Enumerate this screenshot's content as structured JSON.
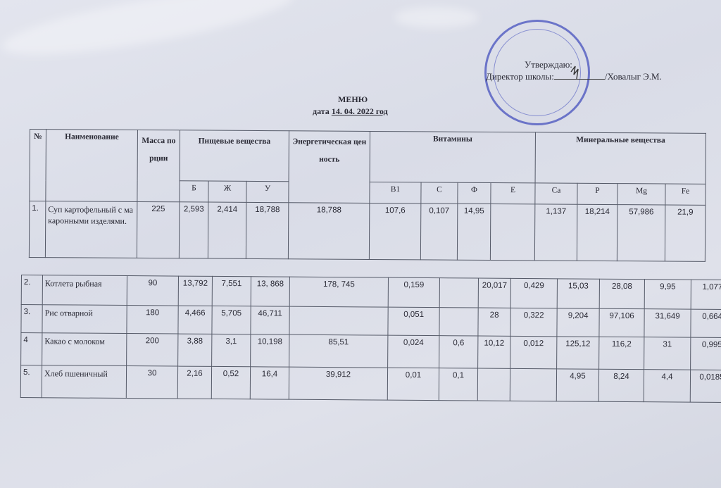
{
  "approval": {
    "approve_label": "Утверждаю:",
    "director_label": "Директор школы:",
    "director_name": "/Ховалыг Э.М."
  },
  "title": "МЕНЮ",
  "date_prefix": "дата",
  "date_value": "14. 04. 2022 год",
  "colors": {
    "stamp": "#4650be",
    "background": "#dcdfe8",
    "border": "#555a68"
  },
  "headers": {
    "num": "№",
    "name": "Наименование",
    "mass": "Масса порции",
    "nutrients": "Пищевые вещества",
    "energy": "Энергетическая ценность",
    "vitamins": "Витамины",
    "minerals": "Минеральные вещества",
    "sub": [
      "Б",
      "Ж",
      "У",
      "B1",
      "C",
      "Ф",
      "E",
      "Ca",
      "P",
      "Mg",
      "Fe"
    ]
  },
  "rows": [
    {
      "num": "1.",
      "name": "Суп картофельный с макаронными изделями.",
      "mass": "225",
      "b": "2,593",
      "zh": "2,414",
      "u": "18,788",
      "energy": "18,788",
      "b1": "107,6",
      "c": "0,107",
      "f": "14,95",
      "e": "",
      "ca": "1,137",
      "p": "18,214",
      "mg": "57,986",
      "fe": "21,9"
    },
    {
      "num": "2.",
      "name": "Котлета рыбная",
      "mass": "90",
      "b": "13,792",
      "zh": "7,551",
      "u": "13, 868",
      "energy": "178, 745",
      "b1": "0,159",
      "c": "",
      "f": "20,017",
      "e": "0,429",
      "ca": "15,03",
      "p": "28,08",
      "mg": "9,95",
      "fe": "1,077"
    },
    {
      "num": "3.",
      "name": "Рис отварной",
      "mass": "180",
      "b": "4,466",
      "zh": "5,705",
      "u": "46,711",
      "energy": "",
      "b1": "0,051",
      "c": "",
      "f": "28",
      "e": "0,322",
      "ca": "9,204",
      "p": "97,106",
      "mg": "31,649",
      "fe": "0,664"
    },
    {
      "num": "4",
      "name": "Какао с молоком",
      "mass": "200",
      "b": "3,88",
      "zh": "3,1",
      "u": "10,198",
      "energy": "85,51",
      "b1": "0,024",
      "c": "0,6",
      "f": "10,12",
      "e": "0,012",
      "ca": "125,12",
      "p": "116,2",
      "mg": "31",
      "fe": "0,995"
    },
    {
      "num": "5.",
      "name": "Хлеб пшеничный",
      "mass": "30",
      "b": "2,16",
      "zh": "0,52",
      "u": "16,4",
      "energy": "39,912",
      "b1": "0,01",
      "c": "0,1",
      "f": "",
      "e": "",
      "ca": "4,95",
      "p": "8,24",
      "mg": "4,4",
      "fe": "0,0185"
    }
  ]
}
